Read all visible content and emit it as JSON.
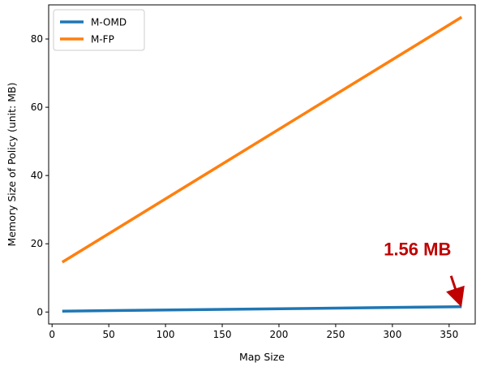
{
  "chart_data": {
    "type": "line",
    "title": "",
    "xlabel": "Map Size",
    "ylabel": "Memory Size of Policy (unit: MB)",
    "xlim": [
      -3,
      373
    ],
    "ylim": [
      -3.5,
      90
    ],
    "xticks": [
      0,
      50,
      100,
      150,
      200,
      250,
      300,
      350
    ],
    "yticks": [
      0,
      20,
      40,
      60,
      80
    ],
    "grid": false,
    "legend_position": "top-left",
    "series": [
      {
        "name": "M-OMD",
        "color": "#1f77b4",
        "x": [
          9,
          361
        ],
        "y": [
          0.25,
          1.56
        ]
      },
      {
        "name": "M-FP",
        "color": "#ff7f0e",
        "x": [
          9,
          361
        ],
        "y": [
          14.6,
          86.4
        ]
      }
    ],
    "annotation": {
      "text": "1.56 MB",
      "color": "#c00000",
      "x": 361,
      "y": 1.56
    }
  }
}
